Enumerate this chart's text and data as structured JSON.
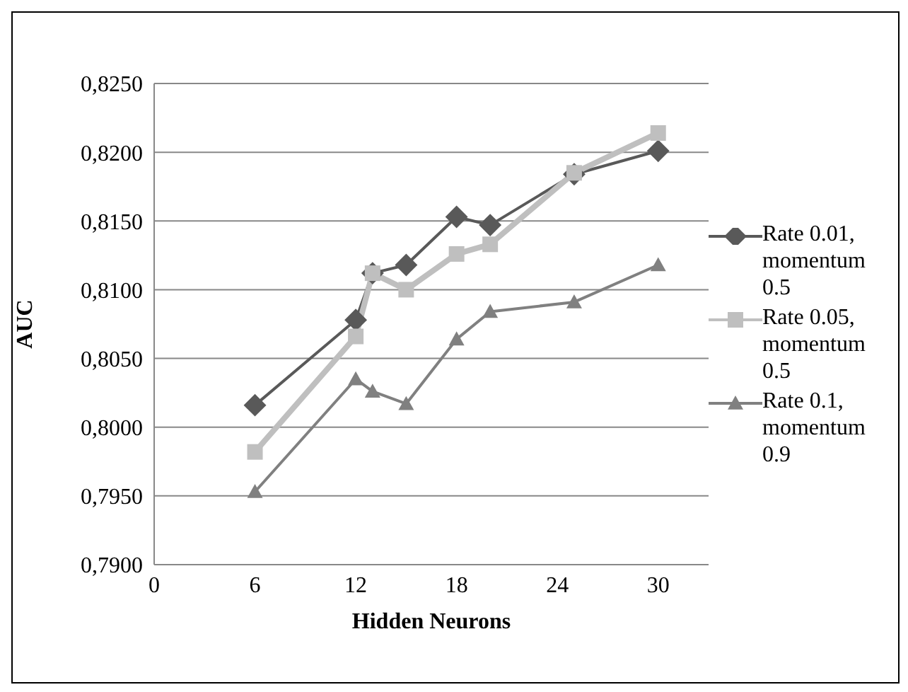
{
  "chart_data": {
    "type": "line",
    "xlabel": "Hidden Neurons",
    "ylabel": "AUC",
    "x": [
      6,
      12,
      13,
      15,
      18,
      20,
      25,
      30
    ],
    "series": [
      {
        "name": "Rate 0.01, momentum 0.5",
        "color": "#595959",
        "marker": "diamond",
        "values": [
          0.8016,
          0.8078,
          0.8112,
          0.8118,
          0.8153,
          0.8147,
          0.8184,
          0.8201
        ]
      },
      {
        "name": "Rate 0.05, momentum 0.5",
        "color": "#bfbfbf",
        "marker": "square",
        "values": [
          0.7982,
          0.8066,
          0.8112,
          0.81,
          0.8126,
          0.8133,
          0.8185,
          0.8214
        ]
      },
      {
        "name": "Rate 0.1, momentum 0.9",
        "color": "#808080",
        "marker": "triangle",
        "values": [
          0.7953,
          0.8035,
          0.8026,
          0.8017,
          0.8064,
          0.8084,
          0.8091,
          0.8118
        ]
      }
    ],
    "xlim": [
      0,
      33
    ],
    "xticks": [
      0,
      6,
      12,
      18,
      24,
      30
    ],
    "ylim": [
      0.79,
      0.825
    ],
    "yticks": [
      {
        "value": 0.79,
        "label": "0,7900"
      },
      {
        "value": 0.795,
        "label": "0,7950"
      },
      {
        "value": 0.8,
        "label": "0,8000"
      },
      {
        "value": 0.805,
        "label": "0,8050"
      },
      {
        "value": 0.81,
        "label": "0,8100"
      },
      {
        "value": 0.815,
        "label": "0,8150"
      },
      {
        "value": 0.82,
        "label": "0,8200"
      },
      {
        "value": 0.825,
        "label": "0,8250"
      }
    ],
    "grid": "y",
    "legend": "right"
  }
}
